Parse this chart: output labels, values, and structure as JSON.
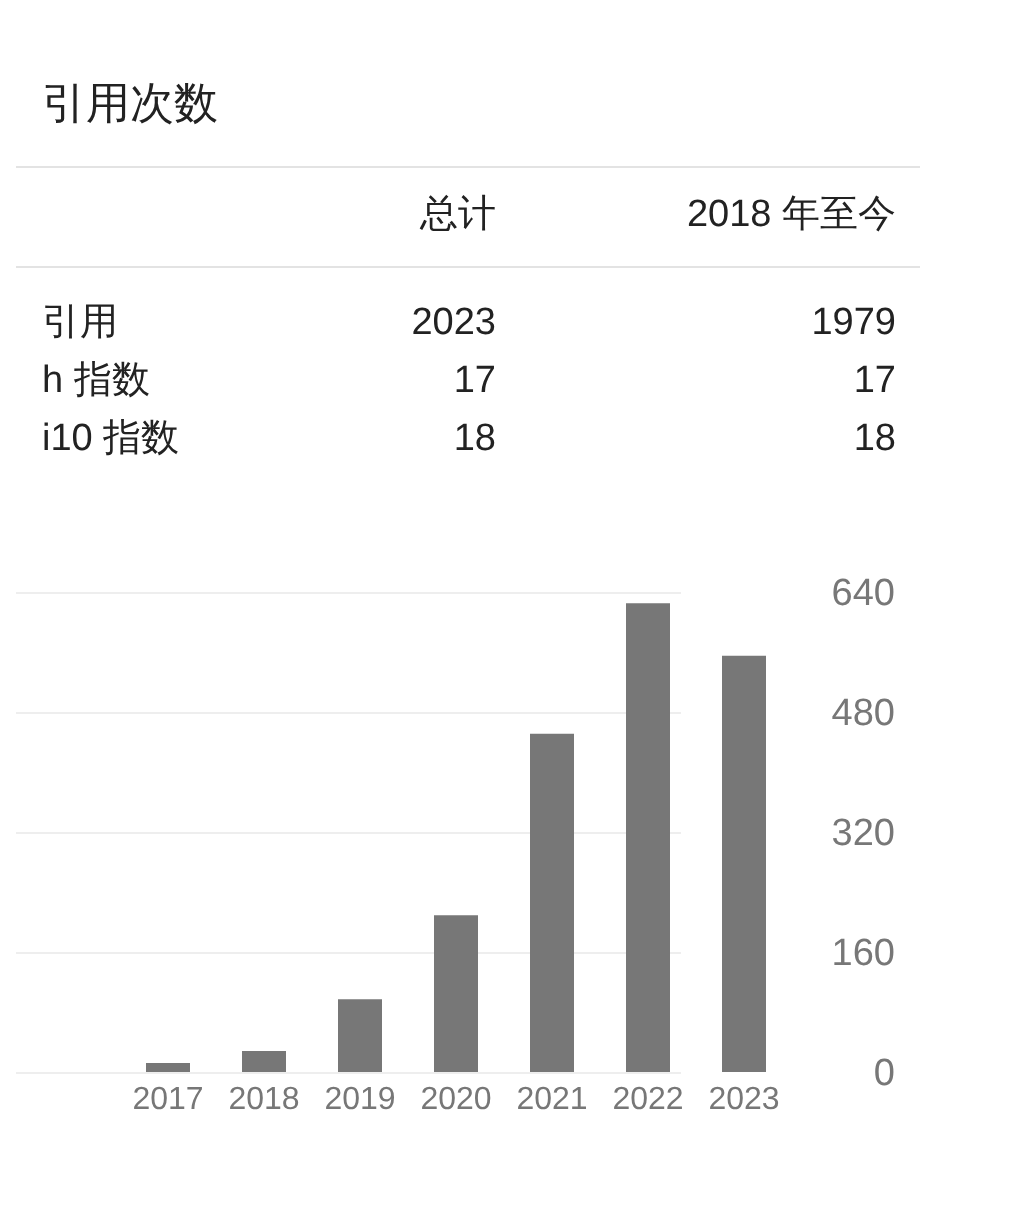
{
  "chart_data": [
    {
      "type": "other",
      "title": "引用次数",
      "annotations": [
        "总计",
        "2018 年至今",
        "引用",
        "2023",
        "1979",
        "h 指数",
        "17",
        "17",
        "i10 指数",
        "18",
        "18"
      ]
    },
    {
      "type": "bar",
      "categories": [
        "2017",
        "2018",
        "2019",
        "2020",
        "2021",
        "2022",
        "2023"
      ],
      "values": [
        12,
        28,
        97,
        209,
        451,
        625,
        555
      ],
      "color": "#777777",
      "ylim": [
        0,
        640
      ],
      "yticks": [
        0,
        160,
        320,
        480,
        640
      ],
      "grid": "y"
    }
  ]
}
